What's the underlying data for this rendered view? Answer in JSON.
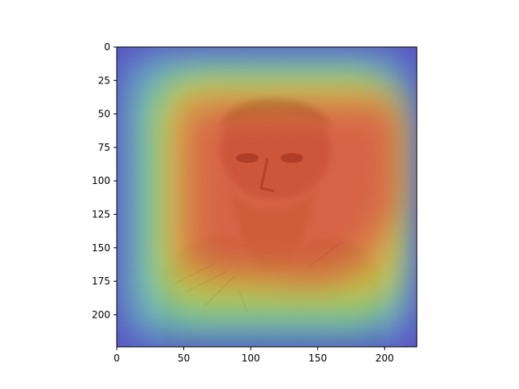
{
  "chart_data": {
    "type": "heatmap",
    "title": "",
    "xlabel": "",
    "ylabel": "",
    "xlim": [
      0,
      224
    ],
    "ylim": [
      224,
      0
    ],
    "x_ticks": [
      0,
      50,
      100,
      150,
      200
    ],
    "y_ticks": [
      0,
      25,
      50,
      75,
      100,
      125,
      150,
      175,
      200
    ],
    "x_tick_labels": [
      "0",
      "50",
      "100",
      "150",
      "200"
    ],
    "y_tick_labels": [
      "0",
      "25",
      "50",
      "75",
      "100",
      "125",
      "150",
      "175",
      "200"
    ],
    "grid": false,
    "colormap": "jet",
    "overlay_alpha": 0.5,
    "background_image": "sepia-portrait-sketch",
    "activation": {
      "description_levels": "high in centre, low at edges",
      "core_region": {
        "x": [
          50,
          210
        ],
        "y": [
          45,
          170
        ],
        "level": 1.0
      },
      "mid_region": {
        "x": [
          25,
          215
        ],
        "y": [
          25,
          200
        ],
        "level": 0.55
      },
      "edge_level": 0.05
    }
  }
}
